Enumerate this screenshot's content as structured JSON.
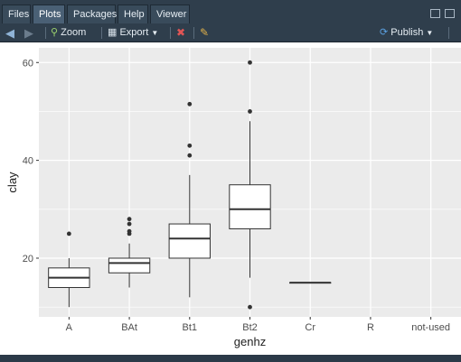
{
  "tabs": [
    "Files",
    "Plots",
    "Packages",
    "Help",
    "Viewer"
  ],
  "active_tab": "Plots",
  "toolbar": {
    "zoom_label": "Zoom",
    "export_label": "Export",
    "publish_label": "Publish"
  },
  "colors": {
    "panel_bg": "#ebebeb",
    "grid": "#ffffff",
    "box_line": "#333333",
    "box_fill": "#ffffff",
    "accent": "#4a90d9"
  },
  "chart_data": {
    "type": "boxplot",
    "xlabel": "genhz",
    "ylabel": "clay",
    "categories": [
      "A",
      "BAt",
      "Bt1",
      "Bt2",
      "Cr",
      "R",
      "not-used"
    ],
    "ylim": [
      8,
      63
    ],
    "yticks": [
      20,
      40,
      60
    ],
    "grid": true,
    "boxes": [
      {
        "category": "A",
        "lower": 10,
        "q1": 14,
        "median": 16,
        "q3": 18,
        "upper": 20,
        "outliers": [
          25
        ]
      },
      {
        "category": "BAt",
        "lower": 14,
        "q1": 17,
        "median": 19,
        "q3": 20,
        "upper": 23,
        "outliers": [
          25,
          25.5,
          27,
          28
        ]
      },
      {
        "category": "Bt1",
        "lower": 12,
        "q1": 20,
        "median": 24,
        "q3": 27,
        "upper": 37,
        "outliers": [
          41,
          43,
          51.5
        ]
      },
      {
        "category": "Bt2",
        "lower": 16,
        "q1": 26,
        "median": 30,
        "q3": 35,
        "upper": 48,
        "outliers": [
          10,
          50,
          60
        ]
      },
      {
        "category": "Cr",
        "lower": 15,
        "q1": 15,
        "median": 15,
        "q3": 15,
        "upper": 15,
        "outliers": []
      }
    ]
  }
}
